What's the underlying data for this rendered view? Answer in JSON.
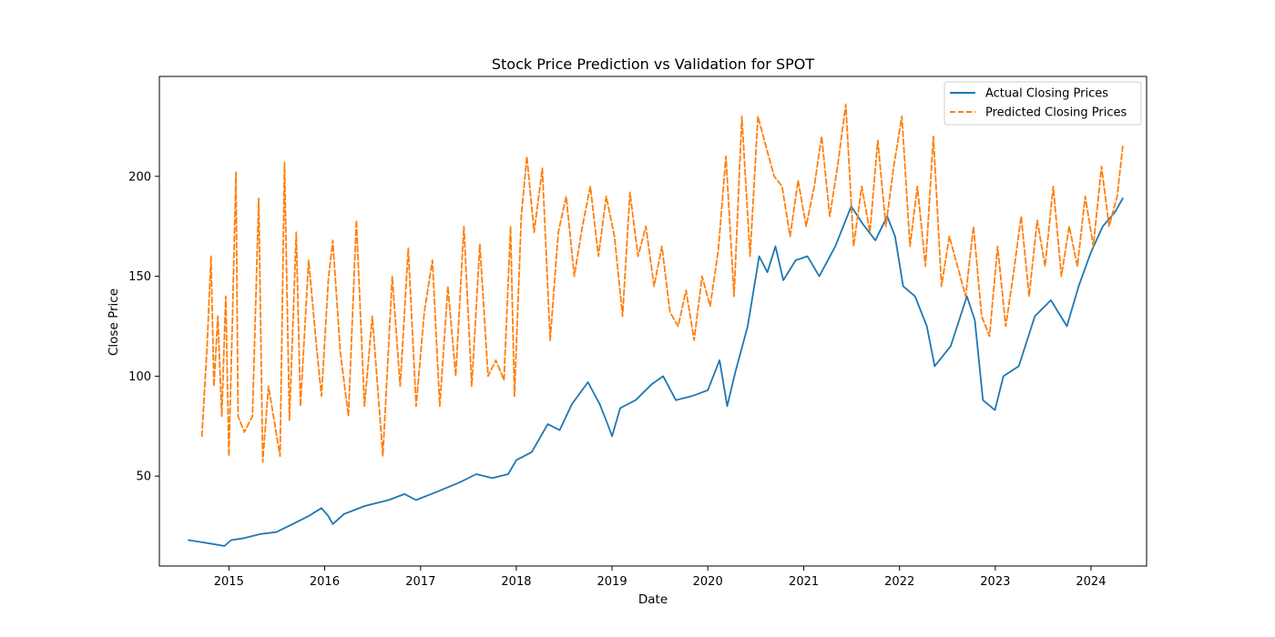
{
  "chart_data": {
    "type": "line",
    "title": "Stock Price Prediction vs Validation for SPOT",
    "xlabel": "Date",
    "ylabel": "Close Price",
    "x_ticks": [
      "2015",
      "2016",
      "2017",
      "2018",
      "2019",
      "2020",
      "2021",
      "2022",
      "2023",
      "2024"
    ],
    "y_ticks": [
      50,
      100,
      150,
      200
    ],
    "xlim": [
      "2014-04-11",
      "2024-07-31"
    ],
    "ylim": [
      5,
      250
    ],
    "grid": false,
    "legend_position": "top-right",
    "series": [
      {
        "name": "Actual Closing Prices",
        "color": "#1f77b4",
        "style": "solid",
        "points": [
          [
            "2014-07-31",
            18
          ],
          [
            "2014-09-15",
            17
          ],
          [
            "2014-11-01",
            16
          ],
          [
            "2014-12-15",
            15
          ],
          [
            "2015-01-10",
            18
          ],
          [
            "2015-03-01",
            19
          ],
          [
            "2015-05-01",
            21
          ],
          [
            "2015-07-01",
            22
          ],
          [
            "2015-09-01",
            26
          ],
          [
            "2015-11-01",
            30
          ],
          [
            "2015-12-20",
            34
          ],
          [
            "2016-01-15",
            30
          ],
          [
            "2016-02-01",
            26
          ],
          [
            "2016-03-15",
            31
          ],
          [
            "2016-06-01",
            35
          ],
          [
            "2016-09-01",
            38
          ],
          [
            "2016-11-01",
            41
          ],
          [
            "2016-12-15",
            38
          ],
          [
            "2017-03-01",
            42
          ],
          [
            "2017-06-01",
            47
          ],
          [
            "2017-08-01",
            51
          ],
          [
            "2017-10-01",
            49
          ],
          [
            "2017-12-01",
            51
          ],
          [
            "2018-01-01",
            58
          ],
          [
            "2018-03-01",
            62
          ],
          [
            "2018-05-01",
            76
          ],
          [
            "2018-06-15",
            73
          ],
          [
            "2018-08-01",
            86
          ],
          [
            "2018-10-01",
            97
          ],
          [
            "2018-11-15",
            86
          ],
          [
            "2018-12-15",
            76
          ],
          [
            "2019-01-01",
            70
          ],
          [
            "2019-02-01",
            84
          ],
          [
            "2019-04-01",
            88
          ],
          [
            "2019-06-01",
            96
          ],
          [
            "2019-07-15",
            100
          ],
          [
            "2019-09-01",
            88
          ],
          [
            "2019-11-01",
            90
          ],
          [
            "2020-01-01",
            93
          ],
          [
            "2020-02-15",
            108
          ],
          [
            "2020-03-15",
            85
          ],
          [
            "2020-04-15",
            102
          ],
          [
            "2020-06-01",
            125
          ],
          [
            "2020-07-15",
            160
          ],
          [
            "2020-08-15",
            152
          ],
          [
            "2020-09-15",
            165
          ],
          [
            "2020-10-15",
            148
          ],
          [
            "2020-12-01",
            158
          ],
          [
            "2021-01-15",
            160
          ],
          [
            "2021-03-01",
            150
          ],
          [
            "2021-05-01",
            165
          ],
          [
            "2021-07-01",
            185
          ],
          [
            "2021-08-15",
            176
          ],
          [
            "2021-10-01",
            168
          ],
          [
            "2021-11-15",
            180
          ],
          [
            "2021-12-15",
            170
          ],
          [
            "2022-01-15",
            145
          ],
          [
            "2022-03-01",
            140
          ],
          [
            "2022-04-15",
            125
          ],
          [
            "2022-05-15",
            105
          ],
          [
            "2022-07-15",
            115
          ],
          [
            "2022-09-15",
            140
          ],
          [
            "2022-10-15",
            128
          ],
          [
            "2022-11-15",
            88
          ],
          [
            "2022-12-31",
            83
          ],
          [
            "2023-02-01",
            100
          ],
          [
            "2023-04-01",
            105
          ],
          [
            "2023-06-01",
            130
          ],
          [
            "2023-08-01",
            138
          ],
          [
            "2023-10-01",
            125
          ],
          [
            "2023-11-15",
            145
          ],
          [
            "2024-01-01",
            162
          ],
          [
            "2024-02-15",
            175
          ],
          [
            "2024-04-01",
            182
          ],
          [
            "2024-05-01",
            189
          ]
        ]
      },
      {
        "name": "Predicted Closing Prices",
        "color": "#ff7f0e",
        "style": "dashed",
        "points": [
          [
            "2014-09-20",
            70
          ],
          [
            "2014-10-10",
            115
          ],
          [
            "2014-10-25",
            160
          ],
          [
            "2014-11-05",
            95
          ],
          [
            "2014-11-20",
            130
          ],
          [
            "2014-12-05",
            80
          ],
          [
            "2014-12-20",
            140
          ],
          [
            "2015-01-01",
            60
          ],
          [
            "2015-01-15",
            130
          ],
          [
            "2015-01-28",
            202
          ],
          [
            "2015-02-05",
            80
          ],
          [
            "2015-03-01",
            72
          ],
          [
            "2015-04-01",
            80
          ],
          [
            "2015-04-25",
            189
          ],
          [
            "2015-05-10",
            57
          ],
          [
            "2015-06-01",
            95
          ],
          [
            "2015-07-15",
            60
          ],
          [
            "2015-08-01",
            207
          ],
          [
            "2015-08-20",
            78
          ],
          [
            "2015-09-15",
            172
          ],
          [
            "2015-10-01",
            85
          ],
          [
            "2015-11-01",
            158
          ],
          [
            "2015-12-01",
            115
          ],
          [
            "2015-12-20",
            90
          ],
          [
            "2016-01-15",
            148
          ],
          [
            "2016-02-01",
            168
          ],
          [
            "2016-03-01",
            112
          ],
          [
            "2016-04-01",
            80
          ],
          [
            "2016-05-01",
            178
          ],
          [
            "2016-06-01",
            85
          ],
          [
            "2016-07-01",
            130
          ],
          [
            "2016-08-10",
            60
          ],
          [
            "2016-09-15",
            150
          ],
          [
            "2016-10-15",
            95
          ],
          [
            "2016-11-15",
            164
          ],
          [
            "2016-12-15",
            85
          ],
          [
            "2017-01-15",
            132
          ],
          [
            "2017-02-15",
            158
          ],
          [
            "2017-03-15",
            85
          ],
          [
            "2017-04-15",
            145
          ],
          [
            "2017-05-15",
            100
          ],
          [
            "2017-06-15",
            175
          ],
          [
            "2017-07-15",
            95
          ],
          [
            "2017-08-15",
            166
          ],
          [
            "2017-09-15",
            100
          ],
          [
            "2017-10-15",
            108
          ],
          [
            "2017-11-15",
            98
          ],
          [
            "2017-12-10",
            175
          ],
          [
            "2017-12-25",
            90
          ],
          [
            "2018-01-20",
            180
          ],
          [
            "2018-02-10",
            210
          ],
          [
            "2018-03-10",
            172
          ],
          [
            "2018-04-10",
            204
          ],
          [
            "2018-05-10",
            118
          ],
          [
            "2018-06-10",
            172
          ],
          [
            "2018-07-10",
            190
          ],
          [
            "2018-08-10",
            150
          ],
          [
            "2018-09-10",
            175
          ],
          [
            "2018-10-10",
            195
          ],
          [
            "2018-11-10",
            160
          ],
          [
            "2018-12-10",
            190
          ],
          [
            "2019-01-10",
            170
          ],
          [
            "2019-02-10",
            130
          ],
          [
            "2019-03-10",
            192
          ],
          [
            "2019-04-10",
            160
          ],
          [
            "2019-05-10",
            175
          ],
          [
            "2019-06-10",
            145
          ],
          [
            "2019-07-10",
            165
          ],
          [
            "2019-08-10",
            132
          ],
          [
            "2019-09-10",
            125
          ],
          [
            "2019-10-10",
            143
          ],
          [
            "2019-11-10",
            118
          ],
          [
            "2019-12-10",
            150
          ],
          [
            "2020-01-10",
            135
          ],
          [
            "2020-02-10",
            163
          ],
          [
            "2020-03-10",
            210
          ],
          [
            "2020-04-10",
            140
          ],
          [
            "2020-05-10",
            230
          ],
          [
            "2020-06-10",
            160
          ],
          [
            "2020-07-10",
            230
          ],
          [
            "2020-08-10",
            215
          ],
          [
            "2020-09-10",
            200
          ],
          [
            "2020-10-10",
            195
          ],
          [
            "2020-11-10",
            170
          ],
          [
            "2020-12-10",
            198
          ],
          [
            "2021-01-10",
            175
          ],
          [
            "2021-02-10",
            195
          ],
          [
            "2021-03-10",
            220
          ],
          [
            "2021-04-10",
            180
          ],
          [
            "2021-05-10",
            205
          ],
          [
            "2021-06-10",
            236
          ],
          [
            "2021-07-10",
            165
          ],
          [
            "2021-08-10",
            195
          ],
          [
            "2021-09-10",
            172
          ],
          [
            "2021-10-10",
            218
          ],
          [
            "2021-11-10",
            175
          ],
          [
            "2021-12-10",
            205
          ],
          [
            "2022-01-10",
            230
          ],
          [
            "2022-02-10",
            165
          ],
          [
            "2022-03-10",
            195
          ],
          [
            "2022-04-10",
            155
          ],
          [
            "2022-05-10",
            220
          ],
          [
            "2022-06-10",
            145
          ],
          [
            "2022-07-10",
            170
          ],
          [
            "2022-08-10",
            155
          ],
          [
            "2022-09-10",
            140
          ],
          [
            "2022-10-10",
            175
          ],
          [
            "2022-11-10",
            130
          ],
          [
            "2022-12-10",
            120
          ],
          [
            "2023-01-10",
            165
          ],
          [
            "2023-02-10",
            125
          ],
          [
            "2023-03-10",
            150
          ],
          [
            "2023-04-10",
            180
          ],
          [
            "2023-05-10",
            140
          ],
          [
            "2023-06-10",
            178
          ],
          [
            "2023-07-10",
            155
          ],
          [
            "2023-08-10",
            195
          ],
          [
            "2023-09-10",
            150
          ],
          [
            "2023-10-10",
            175
          ],
          [
            "2023-11-10",
            155
          ],
          [
            "2023-12-10",
            190
          ],
          [
            "2024-01-10",
            165
          ],
          [
            "2024-02-10",
            205
          ],
          [
            "2024-03-10",
            175
          ],
          [
            "2024-04-10",
            190
          ],
          [
            "2024-05-01",
            215
          ]
        ]
      }
    ]
  }
}
